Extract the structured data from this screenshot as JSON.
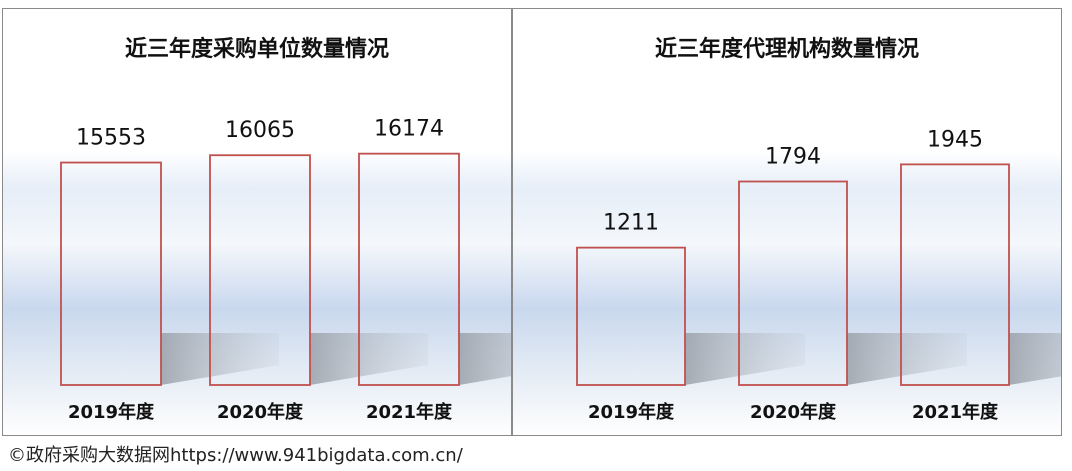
{
  "charts": [
    {
      "title": "近三年度采购单位数量情况",
      "chart_data": {
        "type": "bar",
        "categories": [
          "2019年度",
          "2020年度",
          "2021年度"
        ],
        "values": [
          15553,
          16065,
          16174
        ],
        "data_labels": [
          "15553",
          "16065",
          "16174"
        ],
        "ylim": [
          0,
          16500
        ],
        "bar_stroke": "#c0504d"
      }
    },
    {
      "title": "近三年度代理机构数量情况",
      "chart_data": {
        "type": "bar",
        "categories": [
          "2019年度",
          "2020年度",
          "2021年度"
        ],
        "values": [
          1211,
          1794,
          1945
        ],
        "data_labels": [
          "1211",
          "1794",
          "1945"
        ],
        "ylim": [
          0,
          2010
        ],
        "bar_stroke": "#c0504d"
      }
    }
  ],
  "source_text": "©政府采购大数据网https://www.941bigdata.com.cn/"
}
